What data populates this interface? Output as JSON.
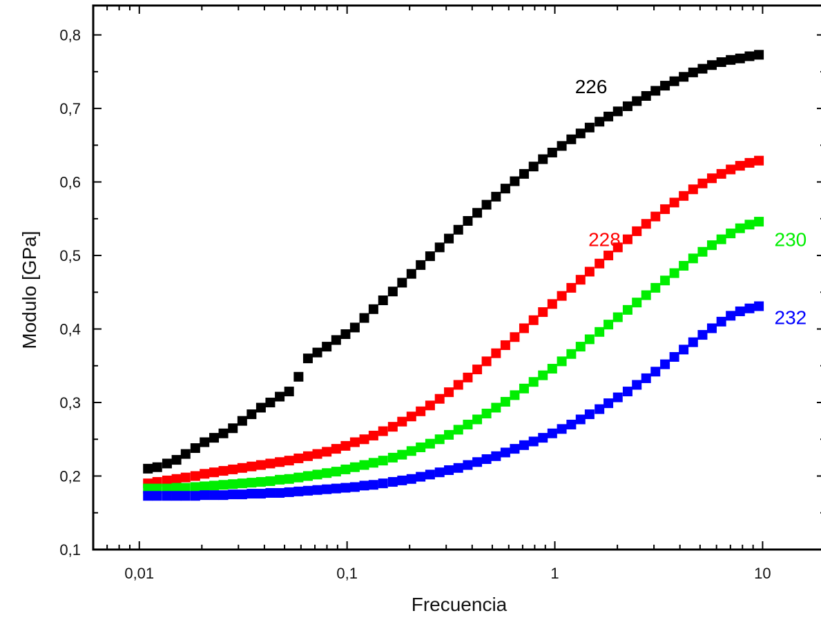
{
  "chart_data": {
    "type": "scatter",
    "title": "",
    "xlabel": "Frecuencia",
    "ylabel": "Modulo [GPa]",
    "xscale": "log",
    "xlim": [
      0.006,
      20
    ],
    "ylim": [
      0.1,
      0.84
    ],
    "x_ticks": [
      {
        "value": 0.01,
        "label": "0,01"
      },
      {
        "value": 0.1,
        "label": "0,1"
      },
      {
        "value": 1,
        "label": "1"
      },
      {
        "value": 10,
        "label": "10"
      }
    ],
    "y_ticks": [
      {
        "value": 0.1,
        "label": "0,1"
      },
      {
        "value": 0.2,
        "label": "0,2"
      },
      {
        "value": 0.3,
        "label": "0,3"
      },
      {
        "value": 0.4,
        "label": "0,4"
      },
      {
        "value": 0.5,
        "label": "0,5"
      },
      {
        "value": 0.6,
        "label": "0,6"
      },
      {
        "value": 0.7,
        "label": "0,7"
      },
      {
        "value": 0.8,
        "label": "0,8"
      }
    ],
    "grid": false,
    "legend": "none",
    "marker": "square",
    "series": [
      {
        "name": "226",
        "color": "#000000",
        "label_at": {
          "x": 1.25,
          "y": 0.73
        },
        "x": [
          0.011,
          0.0122,
          0.0136,
          0.0151,
          0.0167,
          0.0186,
          0.0206,
          0.0229,
          0.0254,
          0.0282,
          0.0313,
          0.0347,
          0.0385,
          0.0427,
          0.0474,
          0.0526,
          0.0584,
          0.0648,
          0.0719,
          0.0798,
          0.0886,
          0.0983,
          0.109,
          0.121,
          0.134,
          0.149,
          0.166,
          0.184,
          0.204,
          0.226,
          0.251,
          0.279,
          0.309,
          0.343,
          0.381,
          0.423,
          0.469,
          0.521,
          0.578,
          0.641,
          0.711,
          0.79,
          0.876,
          0.972,
          1.08,
          1.2,
          1.33,
          1.47,
          1.64,
          1.81,
          2.01,
          2.24,
          2.48,
          2.75,
          3.05,
          3.39,
          3.76,
          4.17,
          4.63,
          5.14,
          5.7,
          6.33,
          7.02,
          7.79,
          8.65,
          9.6
        ],
        "y": [
          0.21,
          0.212,
          0.217,
          0.222,
          0.23,
          0.238,
          0.246,
          0.252,
          0.258,
          0.265,
          0.275,
          0.284,
          0.293,
          0.3,
          0.308,
          0.315,
          0.335,
          0.36,
          0.368,
          0.376,
          0.385,
          0.393,
          0.402,
          0.415,
          0.427,
          0.439,
          0.451,
          0.463,
          0.475,
          0.487,
          0.499,
          0.511,
          0.523,
          0.535,
          0.547,
          0.558,
          0.569,
          0.58,
          0.591,
          0.601,
          0.611,
          0.621,
          0.631,
          0.64,
          0.649,
          0.658,
          0.666,
          0.674,
          0.682,
          0.689,
          0.696,
          0.703,
          0.71,
          0.717,
          0.724,
          0.731,
          0.737,
          0.743,
          0.749,
          0.754,
          0.759,
          0.763,
          0.766,
          0.768,
          0.771,
          0.773
        ]
      },
      {
        "name": "228",
        "color": "#ff0000",
        "label_at": {
          "x": 1.45,
          "y": 0.522
        },
        "x": [
          0.011,
          0.0122,
          0.0136,
          0.0151,
          0.0167,
          0.0186,
          0.0206,
          0.0229,
          0.0254,
          0.0282,
          0.0313,
          0.0347,
          0.0385,
          0.0427,
          0.0474,
          0.0526,
          0.0584,
          0.0648,
          0.0719,
          0.0798,
          0.0886,
          0.0983,
          0.109,
          0.121,
          0.134,
          0.149,
          0.166,
          0.184,
          0.204,
          0.226,
          0.251,
          0.279,
          0.309,
          0.343,
          0.381,
          0.423,
          0.469,
          0.521,
          0.578,
          0.641,
          0.711,
          0.79,
          0.876,
          0.972,
          1.08,
          1.2,
          1.33,
          1.47,
          1.64,
          1.81,
          2.01,
          2.24,
          2.48,
          2.75,
          3.05,
          3.39,
          3.76,
          4.17,
          4.63,
          5.14,
          5.7,
          6.33,
          7.02,
          7.79,
          8.65,
          9.6
        ],
        "y": [
          0.19,
          0.192,
          0.194,
          0.196,
          0.198,
          0.2,
          0.203,
          0.205,
          0.207,
          0.209,
          0.211,
          0.213,
          0.215,
          0.217,
          0.219,
          0.221,
          0.224,
          0.227,
          0.23,
          0.233,
          0.237,
          0.241,
          0.246,
          0.25,
          0.255,
          0.261,
          0.267,
          0.274,
          0.281,
          0.288,
          0.296,
          0.305,
          0.314,
          0.324,
          0.334,
          0.345,
          0.356,
          0.367,
          0.378,
          0.389,
          0.401,
          0.412,
          0.423,
          0.434,
          0.445,
          0.456,
          0.467,
          0.478,
          0.489,
          0.5,
          0.511,
          0.522,
          0.533,
          0.543,
          0.553,
          0.563,
          0.572,
          0.581,
          0.59,
          0.598,
          0.605,
          0.611,
          0.617,
          0.622,
          0.626,
          0.629
        ]
      },
      {
        "name": "230",
        "color": "#00ee00",
        "label_at": {
          "x": 11.4,
          "y": 0.522
        },
        "x": [
          0.011,
          0.0122,
          0.0136,
          0.0151,
          0.0167,
          0.0186,
          0.0206,
          0.0229,
          0.0254,
          0.0282,
          0.0313,
          0.0347,
          0.0385,
          0.0427,
          0.0474,
          0.0526,
          0.0584,
          0.0648,
          0.0719,
          0.0798,
          0.0886,
          0.0983,
          0.109,
          0.121,
          0.134,
          0.149,
          0.166,
          0.184,
          0.204,
          0.226,
          0.251,
          0.279,
          0.309,
          0.343,
          0.381,
          0.423,
          0.469,
          0.521,
          0.578,
          0.641,
          0.711,
          0.79,
          0.876,
          0.972,
          1.08,
          1.2,
          1.33,
          1.47,
          1.64,
          1.81,
          2.01,
          2.24,
          2.48,
          2.75,
          3.05,
          3.39,
          3.76,
          4.17,
          4.63,
          5.14,
          5.7,
          6.33,
          7.02,
          7.79,
          8.65,
          9.6
        ],
        "y": [
          0.183,
          0.183,
          0.183,
          0.184,
          0.184,
          0.185,
          0.186,
          0.187,
          0.188,
          0.189,
          0.19,
          0.191,
          0.192,
          0.193,
          0.195,
          0.196,
          0.198,
          0.2,
          0.202,
          0.204,
          0.206,
          0.209,
          0.212,
          0.215,
          0.218,
          0.221,
          0.225,
          0.229,
          0.234,
          0.239,
          0.244,
          0.25,
          0.256,
          0.263,
          0.27,
          0.277,
          0.285,
          0.293,
          0.301,
          0.31,
          0.319,
          0.328,
          0.337,
          0.346,
          0.356,
          0.366,
          0.376,
          0.386,
          0.396,
          0.406,
          0.416,
          0.426,
          0.436,
          0.446,
          0.456,
          0.466,
          0.476,
          0.486,
          0.496,
          0.505,
          0.514,
          0.522,
          0.53,
          0.537,
          0.542,
          0.546
        ]
      },
      {
        "name": "232",
        "color": "#0000ff",
        "label_at": {
          "x": 11.4,
          "y": 0.416
        },
        "x": [
          0.011,
          0.0122,
          0.0136,
          0.0151,
          0.0167,
          0.0186,
          0.0206,
          0.0229,
          0.0254,
          0.0282,
          0.0313,
          0.0347,
          0.0385,
          0.0427,
          0.0474,
          0.0526,
          0.0584,
          0.0648,
          0.0719,
          0.0798,
          0.0886,
          0.0983,
          0.109,
          0.121,
          0.134,
          0.149,
          0.166,
          0.184,
          0.204,
          0.226,
          0.251,
          0.279,
          0.309,
          0.343,
          0.381,
          0.423,
          0.469,
          0.521,
          0.578,
          0.641,
          0.711,
          0.79,
          0.876,
          0.972,
          1.08,
          1.2,
          1.33,
          1.47,
          1.64,
          1.81,
          2.01,
          2.24,
          2.48,
          2.75,
          3.05,
          3.39,
          3.76,
          4.17,
          4.63,
          5.14,
          5.7,
          6.33,
          7.02,
          7.79,
          8.65,
          9.6
        ],
        "y": [
          0.173,
          0.173,
          0.173,
          0.173,
          0.173,
          0.173,
          0.174,
          0.174,
          0.174,
          0.175,
          0.175,
          0.176,
          0.176,
          0.177,
          0.177,
          0.178,
          0.179,
          0.18,
          0.181,
          0.182,
          0.183,
          0.184,
          0.185,
          0.187,
          0.188,
          0.19,
          0.192,
          0.194,
          0.196,
          0.199,
          0.202,
          0.205,
          0.208,
          0.211,
          0.215,
          0.219,
          0.223,
          0.227,
          0.232,
          0.237,
          0.242,
          0.247,
          0.252,
          0.258,
          0.264,
          0.27,
          0.277,
          0.284,
          0.291,
          0.299,
          0.307,
          0.315,
          0.324,
          0.333,
          0.342,
          0.352,
          0.362,
          0.372,
          0.382,
          0.392,
          0.401,
          0.41,
          0.418,
          0.424,
          0.428,
          0.431
        ]
      }
    ]
  }
}
